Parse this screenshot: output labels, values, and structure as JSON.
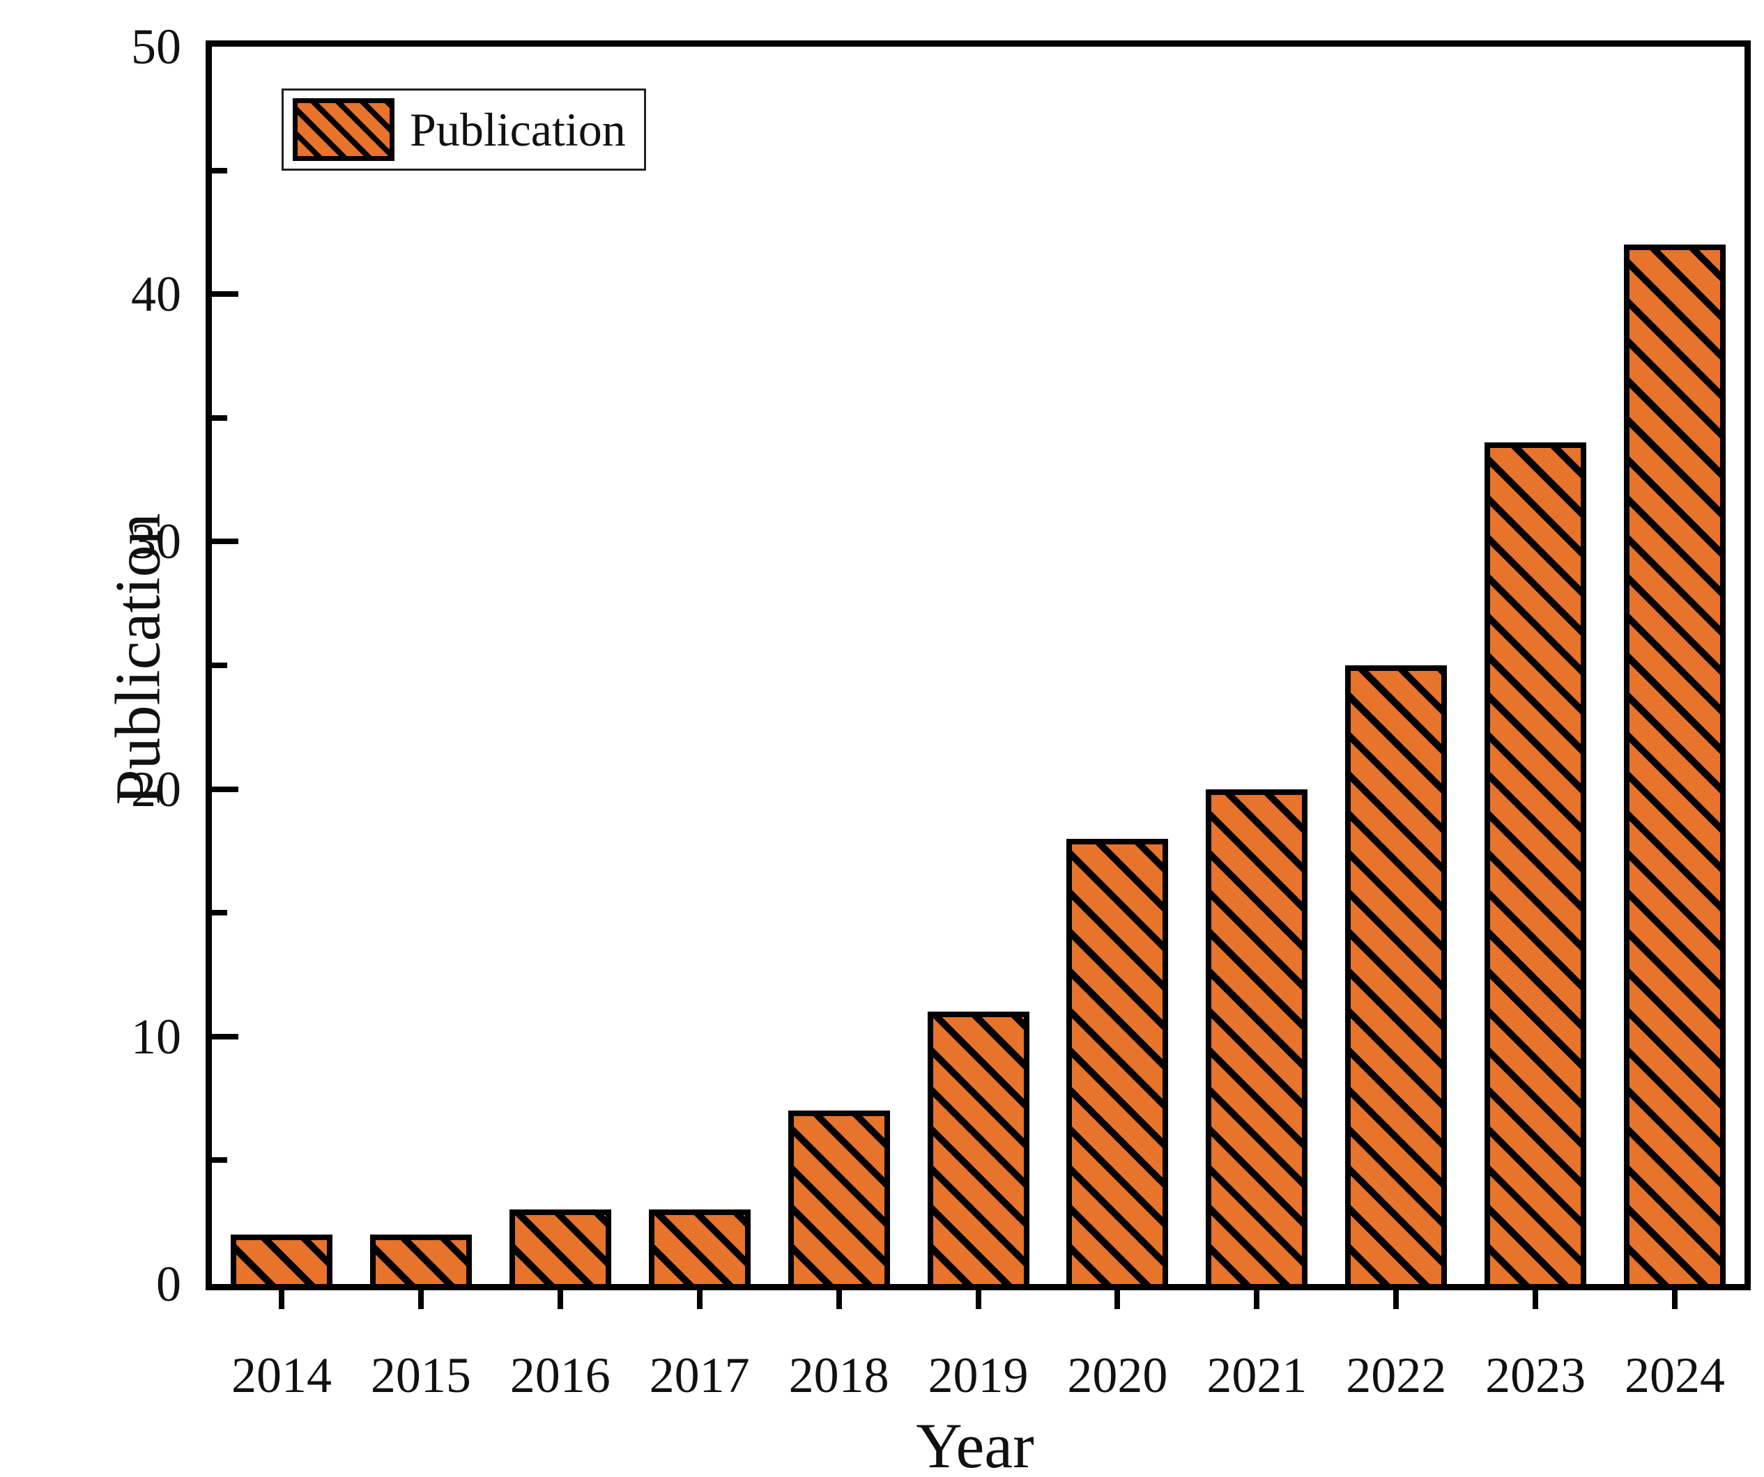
{
  "chart_data": {
    "type": "bar",
    "categories": [
      "2014",
      "2015",
      "2016",
      "2017",
      "2018",
      "2019",
      "2020",
      "2021",
      "2022",
      "2023",
      "2024"
    ],
    "values": [
      2,
      2,
      3,
      3,
      7,
      11,
      18,
      20,
      25,
      34,
      42
    ],
    "title": "",
    "xlabel": "Year",
    "ylabel": "Publication",
    "ylim": [
      0,
      50
    ],
    "ytick_major_step": 10,
    "ytick_minor_step": 5,
    "ytick_labels": [
      "0",
      "10",
      "20",
      "30",
      "40",
      "50"
    ],
    "legend": {
      "label": "Publication",
      "position": "top-left"
    },
    "bar_color": "#E8732A",
    "bar_border_color": "#000000",
    "hatch": "///",
    "grid": false,
    "frame": "full-box"
  }
}
